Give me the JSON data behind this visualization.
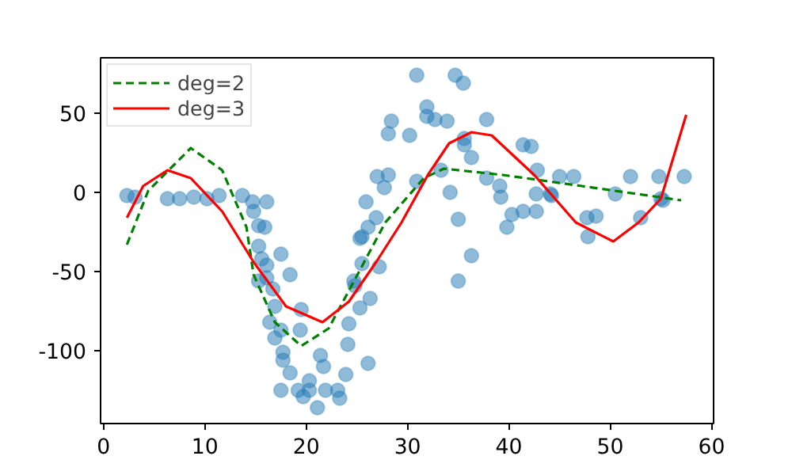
{
  "chart_data": {
    "type": "scatter",
    "xlim": [
      -0.3,
      60.2
    ],
    "ylim": [
      -146,
      85
    ],
    "xticks": [
      0,
      10,
      20,
      30,
      40,
      50,
      60
    ],
    "yticks": [
      -100,
      -50,
      0,
      50
    ],
    "grid": false,
    "legend": "top left",
    "series": [
      {
        "marker": "circle",
        "color": "#1f77b4",
        "x": [
          2.3,
          3.1,
          6.3,
          7.5,
          8.9,
          10.2,
          11.4,
          13.7,
          14.7,
          16.1,
          14.8,
          15.3,
          15.9,
          15.3,
          15.6,
          16.1,
          17.5,
          15.3,
          16.1,
          18.4,
          16.7,
          16.9,
          16.4,
          16.9,
          17.5,
          19.5,
          19.4,
          17.7,
          17.7,
          18.4,
          17.5,
          19.2,
          19.7,
          20.3,
          20.3,
          21.4,
          21.7,
          21.1,
          21.9,
          23.1,
          23.3,
          23.9,
          24.1,
          24.2,
          24.7,
          24.8,
          25.3,
          26.3,
          26.1,
          25.5,
          27.2,
          25.5,
          26.1,
          28.4,
          28.1,
          27.0,
          28.1,
          27.7,
          25.9,
          26.9,
          25.3,
          30.9,
          34.7,
          35.5,
          31.9,
          31.9,
          32.7,
          33.9,
          37.8,
          30.2,
          35.6,
          35.6,
          36.3,
          41.4,
          42.2,
          33.3,
          30.9,
          37.8,
          42.8,
          45.0,
          46.4,
          52.0,
          54.8,
          57.3,
          39.1,
          39.2,
          42.7,
          44.1,
          44.2,
          34.2,
          50.5,
          55.0,
          55.2,
          35.0,
          40.3,
          41.4,
          42.7,
          39.8,
          47.7,
          48.6,
          53.0,
          47.8,
          36.3,
          35.0
        ],
        "values": [
          -2,
          -3,
          -4,
          -4,
          -3,
          -4,
          -2,
          -2,
          -6,
          -6,
          -12,
          -21,
          -22,
          -34,
          -42,
          -46,
          -39,
          -56,
          -54,
          -52,
          -61,
          -72,
          -82,
          -92,
          -87,
          -74,
          -87,
          -101,
          -106,
          -114,
          -125,
          -125,
          -129,
          -119,
          -125,
          -103,
          -110,
          -136,
          -125,
          -125,
          -130,
          -115,
          -96,
          -83,
          -56,
          -59,
          -73,
          -67,
          -108,
          -45,
          -47,
          -28,
          -22,
          45,
          37,
          10,
          11,
          3,
          -6,
          -16,
          -29,
          74,
          74,
          69,
          54,
          48,
          46,
          45,
          46,
          36,
          34,
          30,
          22,
          30,
          29,
          14,
          7,
          9,
          14,
          10,
          10,
          10,
          10,
          10,
          4,
          -3,
          -1,
          -1,
          -2,
          0,
          -1,
          -4,
          -5,
          -17,
          -14,
          -12,
          -12,
          -22,
          -16,
          -15,
          -16,
          -28,
          -40,
          -56
        ]
      },
      {
        "type": "line",
        "name": "deg=2",
        "color": "#008000",
        "line_style": "dashed",
        "x": [
          2.3,
          4.4,
          8.6,
          11.7,
          14.1,
          14.8,
          16.9,
          19.5,
          22.2,
          25.3,
          27.8,
          31.6,
          33.6,
          39.4,
          47.2,
          57.0
        ],
        "values": [
          -33,
          1,
          28,
          14,
          -22,
          -52,
          -82,
          -97,
          -86,
          -49,
          -19,
          9,
          15,
          11,
          4,
          -5
        ]
      },
      {
        "type": "line",
        "name": "deg=3",
        "color": "#ff0000",
        "line_style": "solid",
        "x": [
          2.3,
          3.9,
          6.3,
          8.6,
          11.7,
          14.8,
          18.0,
          21.6,
          24.2,
          26.9,
          29.4,
          32.0,
          34.1,
          36.3,
          38.3,
          42.5,
          46.6,
          50.3,
          52.8,
          55.0,
          57.5
        ],
        "values": [
          -16,
          4,
          14,
          9,
          -12,
          -44,
          -72,
          -82,
          -69,
          -44,
          -19,
          11,
          31,
          38,
          36,
          11,
          -19,
          -31,
          -19,
          -4,
          49
        ]
      }
    ]
  }
}
